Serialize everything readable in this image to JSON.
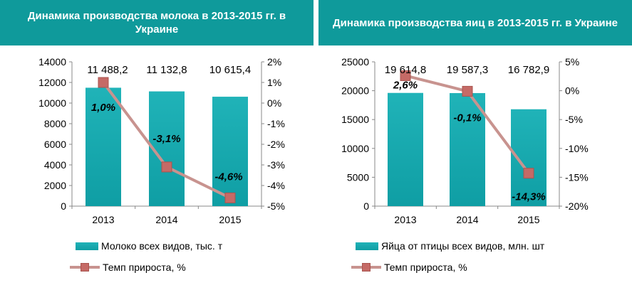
{
  "colors": {
    "header_bg": "#0f9a9b",
    "bar": "#0f9ea4",
    "bar_top": "#20b3b8",
    "line": "#c8938f",
    "marker": "#c56a66",
    "marker_stroke": "#a9544f"
  },
  "chart_data": [
    {
      "type": "bar",
      "title": "Динамика производства молока в 2013-2015 гг. в Украине",
      "categories": [
        "2013",
        "2014",
        "2015"
      ],
      "y_ticks": [
        "14000",
        "12000",
        "10000",
        "8000",
        "6000",
        "4000",
        "2000",
        "0"
      ],
      "y2_ticks": [
        "2%",
        "1%",
        "0%",
        "-1%",
        "-2%",
        "-3%",
        "-4%",
        "-5%"
      ],
      "ylim": [
        0,
        14000
      ],
      "y2lim": [
        -5,
        2
      ],
      "series": [
        {
          "name": "Молоко всех видов, тыс. т",
          "type": "bar",
          "axis": "left",
          "values": [
            11488.2,
            11132.8,
            10615.4
          ],
          "labels": [
            "11 488,2",
            "11 132,8",
            "10 615,4"
          ]
        },
        {
          "name": "Темп прироста, %",
          "type": "line",
          "axis": "right",
          "values": [
            1.0,
            -3.1,
            -4.6
          ],
          "labels": [
            "1,0%",
            "-3,1%",
            "-4,6%"
          ]
        }
      ],
      "legend_position": "bottom"
    },
    {
      "type": "bar",
      "title": "Динамика производства яиц в 2013-2015 гг. в Украине",
      "categories": [
        "2013",
        "2014",
        "2015"
      ],
      "y_ticks": [
        "25000",
        "20000",
        "15000",
        "10000",
        "5000",
        "0"
      ],
      "y2_ticks": [
        "5%",
        "0%",
        "-5%",
        "-10%",
        "-15%",
        "-20%"
      ],
      "ylim": [
        0,
        25000
      ],
      "y2lim": [
        -20,
        5
      ],
      "series": [
        {
          "name": "Яйца от птицы всех видов, млн. шт",
          "type": "bar",
          "axis": "left",
          "values": [
            19614.8,
            19587.3,
            16782.9
          ],
          "labels": [
            "19 614,8",
            "19 587,3",
            "16 782,9"
          ]
        },
        {
          "name": "Темп прироста, %",
          "type": "line",
          "axis": "right",
          "values": [
            2.6,
            -0.1,
            -14.3
          ],
          "labels": [
            "2,6%",
            "-0,1%",
            "-14,3%"
          ]
        }
      ],
      "legend_position": "bottom"
    }
  ]
}
